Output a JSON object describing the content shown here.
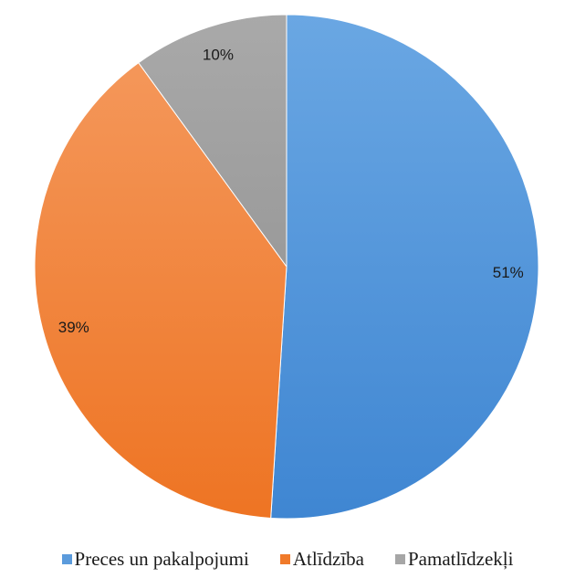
{
  "chart_data": {
    "type": "pie",
    "title": "",
    "categories": [
      "Preces un pakalpojumi",
      "Atlīdzība",
      "Pamatlīdzekļi"
    ],
    "values": [
      51,
      39,
      10
    ],
    "value_labels": [
      "51%",
      "39%",
      "10%"
    ],
    "colors": [
      "#4a8fd8",
      "#f07a2a",
      "#a6a6a6"
    ],
    "start_angle": "12 o'clock",
    "direction": "clockwise",
    "legend_position": "bottom",
    "show_data_labels": true
  }
}
